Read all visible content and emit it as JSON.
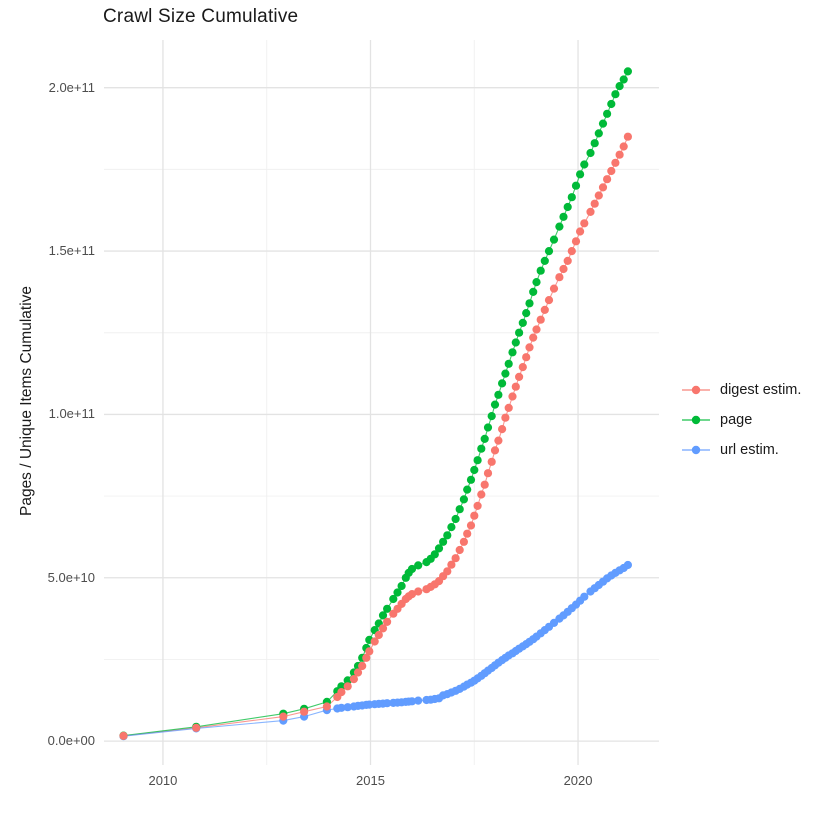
{
  "title": "Crawl Size Cumulative",
  "axes": {
    "y_title": "Pages / Unique Items Cumulative",
    "y_tick_labels": [
      "0.0e+00",
      "5.0e+10",
      "1.0e+11",
      "1.5e+11",
      "2.0e+11"
    ],
    "x_tick_labels": [
      "2010",
      "2015",
      "2020"
    ]
  },
  "legend": {
    "items": [
      {
        "label": "digest estim.",
        "color": "#F8766D"
      },
      {
        "label": "page",
        "color": "#00BA38"
      },
      {
        "label": "url estim.",
        "color": "#619CFF"
      }
    ]
  },
  "colors": {
    "background": "#ffffff",
    "grid_major": "#e3e3e3",
    "grid_minor": "#f0f0f0",
    "tick_text": "#4d4d4d",
    "title_text": "#1a1a1a",
    "digest": "#F8766D",
    "page": "#00BA38",
    "url": "#619CFF"
  },
  "chart_data": {
    "type": "scatter",
    "title": "Crawl Size Cumulative",
    "xlabel": "",
    "ylabel": "Pages / Unique Items Cumulative",
    "legend_position": "right",
    "grid": true,
    "x_unit": "year (decimal date of crawl)",
    "value_unit": "items, stored in units of 1e9 (billions)",
    "xlim": [
      2008.58,
      2021.95
    ],
    "ylim_e9": [
      -7.3,
      214.6
    ],
    "x_ticks": [
      2010,
      2015,
      2020
    ],
    "x_minor_ticks": [
      2012.5,
      2017.5
    ],
    "y_ticks_e9": [
      0,
      50,
      100,
      150,
      200
    ],
    "y_minor_ticks_e9": [
      25,
      75,
      125,
      175
    ],
    "x": [
      2009.05,
      2010.8,
      2012.9,
      2013.4,
      2013.95,
      2014.2,
      2014.3,
      2014.45,
      2014.6,
      2014.7,
      2014.8,
      2014.9,
      2014.97,
      2015.1,
      2015.2,
      2015.3,
      2015.4,
      2015.55,
      2015.65,
      2015.75,
      2015.85,
      2015.92,
      2016.0,
      2016.15,
      2016.35,
      2016.45,
      2016.55,
      2016.65,
      2016.75,
      2016.85,
      2016.95,
      2017.05,
      2017.15,
      2017.25,
      2017.33,
      2017.42,
      2017.5,
      2017.58,
      2017.67,
      2017.75,
      2017.83,
      2017.92,
      2018.0,
      2018.08,
      2018.17,
      2018.25,
      2018.33,
      2018.42,
      2018.5,
      2018.58,
      2018.67,
      2018.75,
      2018.83,
      2018.92,
      2019.0,
      2019.1,
      2019.2,
      2019.3,
      2019.42,
      2019.55,
      2019.65,
      2019.75,
      2019.85,
      2019.95,
      2020.05,
      2020.15,
      2020.3,
      2020.4,
      2020.5,
      2020.6,
      2020.7,
      2020.8,
      2020.9,
      2021.0,
      2021.1,
      2021.2
    ],
    "series": [
      {
        "name": "digest estim.",
        "color": "#F8766D",
        "values_e9": [
          1.6,
          4.1,
          7.5,
          9.0,
          10.6,
          13.5,
          15.0,
          16.8,
          19.0,
          21.0,
          23.0,
          25.5,
          27.5,
          30.5,
          32.5,
          34.5,
          36.5,
          39.0,
          40.5,
          42.0,
          43.5,
          44.3,
          45.0,
          45.8,
          46.5,
          47.2,
          48.0,
          49.0,
          50.5,
          52.0,
          54.0,
          56.0,
          58.5,
          61.0,
          63.5,
          66.0,
          69.0,
          72.0,
          75.5,
          78.5,
          82.0,
          85.5,
          89.0,
          92.0,
          95.5,
          99.0,
          102.0,
          105.5,
          108.5,
          111.5,
          114.5,
          117.5,
          120.5,
          123.5,
          126.0,
          129.0,
          132.0,
          135.0,
          138.5,
          142.0,
          144.5,
          147.0,
          150.0,
          153.0,
          156.0,
          158.5,
          162.0,
          164.5,
          167.0,
          169.5,
          172.0,
          174.5,
          177.0,
          179.5,
          182.0,
          185.0
        ]
      },
      {
        "name": "page",
        "color": "#00BA38",
        "values_e9": [
          1.7,
          4.4,
          8.4,
          9.9,
          12.0,
          15.3,
          16.8,
          18.6,
          21.0,
          23.0,
          25.5,
          28.5,
          31.0,
          34.0,
          36.0,
          38.5,
          40.5,
          43.5,
          45.5,
          47.5,
          50.0,
          51.5,
          52.7,
          53.8,
          54.8,
          55.8,
          57.2,
          59.0,
          61.0,
          63.0,
          65.5,
          68.0,
          71.0,
          74.0,
          77.0,
          80.0,
          83.0,
          86.0,
          89.5,
          92.5,
          96.0,
          99.5,
          103.0,
          106.0,
          109.5,
          112.5,
          115.5,
          119.0,
          122.0,
          125.0,
          128.0,
          131.0,
          134.0,
          137.5,
          140.5,
          144.0,
          147.0,
          150.0,
          153.5,
          157.5,
          160.5,
          163.5,
          166.5,
          170.0,
          173.5,
          176.5,
          180.0,
          183.0,
          186.0,
          189.0,
          192.0,
          195.0,
          198.0,
          200.5,
          202.5,
          205.0
        ]
      },
      {
        "name": "url estim.",
        "color": "#619CFF",
        "values_e9": [
          1.5,
          3.9,
          6.3,
          7.5,
          9.5,
          10.0,
          10.2,
          10.4,
          10.6,
          10.8,
          10.9,
          11.1,
          11.2,
          11.3,
          11.4,
          11.5,
          11.6,
          11.7,
          11.8,
          11.9,
          12.0,
          12.1,
          12.2,
          12.4,
          12.6,
          12.7,
          12.9,
          13.1,
          14.0,
          14.4,
          14.9,
          15.4,
          16.0,
          16.7,
          17.3,
          17.9,
          18.5,
          19.2,
          20.0,
          20.8,
          21.6,
          22.4,
          23.2,
          24.0,
          24.8,
          25.5,
          26.2,
          26.9,
          27.6,
          28.3,
          29.0,
          29.7,
          30.4,
          31.2,
          32.0,
          33.0,
          34.0,
          35.0,
          36.2,
          37.5,
          38.5,
          39.6,
          40.7,
          41.8,
          43.0,
          44.2,
          45.8,
          46.8,
          47.8,
          48.8,
          49.8,
          50.7,
          51.5,
          52.3,
          53.0,
          53.9
        ]
      }
    ]
  }
}
